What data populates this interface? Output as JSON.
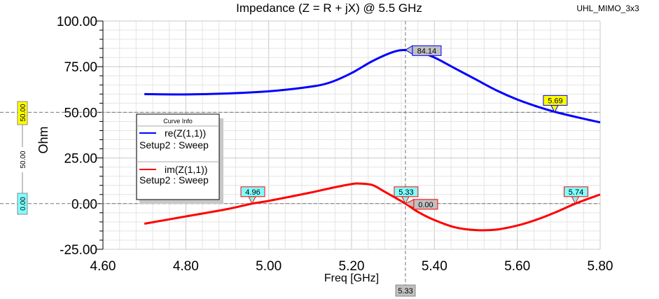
{
  "chart_data": {
    "type": "line",
    "title": "Impedance (Z = R + jX) @ 5.5 GHz",
    "project": "UHL_MIMO_3x3",
    "xlabel": "Freq [GHz]",
    "ylabel": "Ohm",
    "xlim": [
      4.6,
      5.8
    ],
    "ylim": [
      -25,
      100
    ],
    "xticks": [
      "4.60",
      "4.80",
      "5.00",
      "5.20",
      "5.40",
      "5.60",
      "5.80"
    ],
    "yticks": [
      "-25.00",
      "0.00",
      "25.00",
      "50.00",
      "75.00",
      "100.00"
    ],
    "grid": true,
    "legend": {
      "title": "Curve Info",
      "placement": "left",
      "entries": [
        {
          "name": "re(Z(1,1))",
          "sub": "Setup2 : Sweep",
          "color": "#0000ff"
        },
        {
          "name": "im(Z(1,1))",
          "sub": "Setup2 : Sweep",
          "color": "#ff0000"
        }
      ]
    },
    "series": [
      {
        "name": "re(Z(1,1))",
        "color": "#0000ff",
        "x": [
          4.7,
          4.8,
          4.9,
          5.0,
          5.1,
          5.15,
          5.2,
          5.25,
          5.3,
          5.33,
          5.36,
          5.4,
          5.45,
          5.5,
          5.55,
          5.6,
          5.65,
          5.69,
          5.75,
          5.8
        ],
        "y": [
          60,
          59.8,
          60.3,
          61.5,
          64,
          66.5,
          71.5,
          78,
          83,
          84.14,
          83.3,
          80,
          74,
          68,
          62,
          57,
          53,
          50.3,
          47,
          44.5
        ]
      },
      {
        "name": "im(Z(1,1))",
        "color": "#ff0000",
        "x": [
          4.7,
          4.8,
          4.9,
          4.96,
          5.0,
          5.1,
          5.15,
          5.2,
          5.22,
          5.25,
          5.28,
          5.33,
          5.36,
          5.4,
          5.45,
          5.5,
          5.55,
          5.6,
          5.65,
          5.7,
          5.74,
          5.8
        ],
        "y": [
          -11,
          -7,
          -3,
          0,
          1.5,
          6,
          8.5,
          10.7,
          11,
          10.2,
          6.5,
          0,
          -4.5,
          -9,
          -13,
          -14.5,
          -14.2,
          -12,
          -8.5,
          -4,
          0,
          5
        ]
      }
    ],
    "markers": [
      {
        "label": "84.14",
        "x": 5.33,
        "y": 84.14,
        "style": "value"
      },
      {
        "label": "5.69",
        "x": 5.69,
        "y": 50,
        "style": "yellow"
      },
      {
        "label": "4.96",
        "x": 4.96,
        "y": 0,
        "style": "cyan"
      },
      {
        "label": "5.33",
        "x": 5.33,
        "y": 0,
        "style": "cyan"
      },
      {
        "label": "5.74",
        "x": 5.74,
        "y": 0,
        "style": "cyan"
      },
      {
        "label": "0.00",
        "x": 5.33,
        "y": 0,
        "style": "value-red"
      }
    ],
    "x_cursor_label": "5.33",
    "y_cursor_labels": {
      "upper": "50.00",
      "lower": "0.00",
      "delta": "50.00"
    }
  }
}
